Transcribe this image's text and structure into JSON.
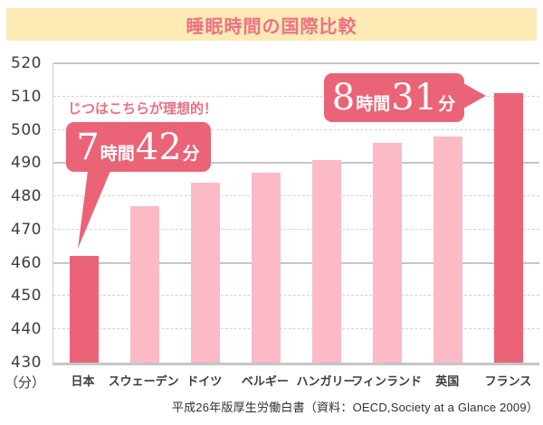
{
  "header": {
    "title": "睡眠時間の国際比較"
  },
  "chart_data": {
    "type": "bar",
    "title": "睡眠時間の国際比較",
    "unit_label": "（分）",
    "categories": [
      "日本",
      "スウェーデン",
      "ドイツ",
      "ベルギー",
      "ハンガリー",
      "フィンランド",
      "英国",
      "フランス"
    ],
    "values": [
      462,
      477,
      484,
      487,
      491,
      496,
      498,
      511
    ],
    "highlighted_indices": [
      0,
      7
    ],
    "ylim": [
      430,
      520
    ],
    "yticks": [
      430,
      440,
      450,
      460,
      470,
      480,
      490,
      500,
      510,
      520
    ],
    "solid_gridlines": [
      430,
      460,
      490,
      520
    ],
    "grid": true,
    "legend": false,
    "colors": {
      "bar": "#fcbac6",
      "bar_highlight": "#eb6377",
      "callout_bg": "#eb6377",
      "callout_text": "#ffffff",
      "note_text": "#ee6e83",
      "banner_bg": "#fdeab5",
      "title_text": "#ee7183",
      "axis_text": "#3d3d3d"
    },
    "annotations": [
      {
        "target": "日本",
        "note": "じつはこちらが理想的！",
        "hours": "7",
        "hours_unit": "時間",
        "minutes": "42",
        "minutes_unit": "分"
      },
      {
        "target": "フランス",
        "hours": "8",
        "hours_unit": "時間",
        "minutes": "31",
        "minutes_unit": "分"
      }
    ]
  },
  "source": "平成26年版厚生労働白書（資料：OECD,Society at a Glance 2009）"
}
